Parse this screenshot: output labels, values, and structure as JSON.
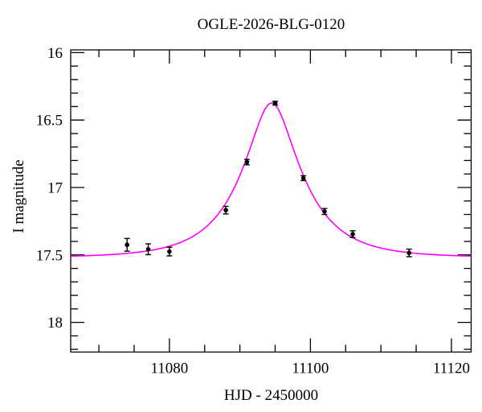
{
  "chart_data": {
    "type": "scatter",
    "title": "OGLE-2026-BLG-0120",
    "xlabel": "HJD - 2450000",
    "ylabel": "I magnitude",
    "xlim": [
      11066,
      11122.8
    ],
    "ylim": [
      18.22,
      15.98
    ],
    "y_axis_inverted": true,
    "grid": false,
    "legend": "none",
    "x_major_ticks": [
      11080,
      11100,
      11120
    ],
    "x_major_tick_labels": [
      "11080",
      "11100",
      "11120"
    ],
    "x_minor_tick_step": 5,
    "y_major_ticks": [
      16,
      16.5,
      17,
      17.5,
      18
    ],
    "y_major_tick_labels": [
      "16",
      "16.5",
      "17",
      "17.5",
      "18"
    ],
    "y_minor_tick_step": 0.1,
    "points": {
      "x_hjd": [
        11074,
        11077,
        11080,
        11088,
        11091,
        11095,
        11099,
        11102,
        11106,
        11114
      ],
      "i_mag": [
        17.425,
        17.458,
        17.475,
        17.168,
        16.812,
        16.375,
        16.931,
        17.178,
        17.346,
        17.485
      ],
      "mag_err": [
        0.047,
        0.04,
        0.032,
        0.028,
        0.02,
        0.014,
        0.018,
        0.022,
        0.025,
        0.028
      ]
    },
    "model_curve": {
      "model": "paczynski-point-lens",
      "t0": 11094.5,
      "tE": 8.2,
      "u0": 0.365,
      "baseline_mag": 17.52,
      "peak_mag": 16.37
    },
    "colors": {
      "model_curve": "#ff00ff",
      "data_points": "#000000",
      "axes": "#000000",
      "background": "#ffffff"
    }
  }
}
